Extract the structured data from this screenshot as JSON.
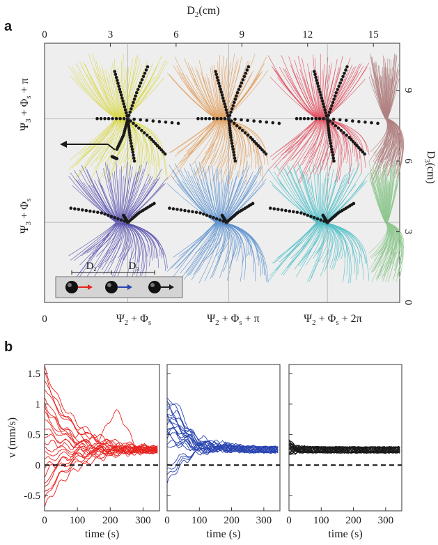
{
  "panel_labels": {
    "a": "a",
    "b": "b"
  },
  "chart_data": [
    {
      "type": "scatter",
      "panel": "a",
      "title": "",
      "xlabel_top": "D",
      "xlabel_top_sub": "2",
      "xlabel_top_unit": "(cm)",
      "ylabel_right": "D",
      "ylabel_right_sub": "3",
      "ylabel_right_unit": "(cm)",
      "xlim": [
        0,
        16.2
      ],
      "ylim": [
        0,
        11
      ],
      "x_ticks": [
        "0",
        "3",
        "6",
        "9",
        "12",
        "15"
      ],
      "x_tick_values": [
        0,
        3,
        6,
        9,
        12,
        15
      ],
      "y_ticks": [
        "0",
        "3",
        "6",
        "9"
      ],
      "y_tick_values": [
        0,
        3,
        6,
        9
      ],
      "bottom_labels": [
        {
          "text": "Ψ",
          "sub": "2",
          "rest": " + Φ",
          "sub2": "s",
          "tail": ""
        },
        {
          "text": "Ψ",
          "sub": "2",
          "rest": " + Φ",
          "sub2": "s",
          "tail": " + π"
        },
        {
          "text": "Ψ",
          "sub": "2",
          "rest": " + Φ",
          "sub2": "s",
          "tail": " + 2π"
        }
      ],
      "bottom_origin_label": "0",
      "left_labels": [
        {
          "text": "Ψ",
          "sub": "3",
          "rest": " + Φ",
          "sub2": "s",
          "tail": ""
        },
        {
          "text": "Ψ",
          "sub": "3",
          "rest": " + Φ",
          "sub2": "s",
          "tail": " + π"
        }
      ],
      "inset": {
        "d2": "D",
        "d2_sub": "2",
        "d3": "D",
        "d3_sub": "3"
      },
      "fixed_points": [
        {
          "x": 3.8,
          "y": 7.8,
          "row": "top"
        },
        {
          "x": 8.4,
          "y": 7.8,
          "row": "top"
        },
        {
          "x": 12.9,
          "y": 7.8,
          "row": "top"
        },
        {
          "x": 3.8,
          "y": 3.4,
          "row": "bottom"
        },
        {
          "x": 8.3,
          "y": 3.4,
          "row": "bottom"
        },
        {
          "x": 12.9,
          "y": 3.4,
          "row": "bottom"
        }
      ],
      "colors": {
        "top_row": [
          "#d8d84a",
          "#e0a060",
          "#e05060",
          "#b08080"
        ],
        "bottom_row": [
          "#5a55b0",
          "#5a90d0",
          "#50c0c8",
          "#90c890"
        ],
        "trajectory": "#1a1a1a"
      }
    },
    {
      "type": "line",
      "panel": "b",
      "subplots": [
        {
          "name": "",
          "color": "#e8221e",
          "xlabel": "time (s)",
          "x_ticks": [
            "0",
            "100",
            "200",
            "300"
          ]
        },
        {
          "name": "",
          "color": "#2a45b0",
          "xlabel": "time (s)",
          "x_ticks": [
            "0",
            "100",
            "200",
            "300"
          ]
        },
        {
          "name": "",
          "color": "#1a1a1a",
          "xlabel": "time (s)",
          "x_ticks": [
            "0",
            "100",
            "200",
            "300"
          ]
        }
      ],
      "ylabel": "v (mm/s)",
      "y_ticks": [
        "-0.5",
        "0",
        "0.5",
        "1",
        "1.5"
      ],
      "y_tick_values": [
        -0.5,
        0,
        0.5,
        1,
        1.5
      ],
      "xlim": [
        0,
        350
      ],
      "ylim": [
        -0.75,
        1.65
      ],
      "steady_state": 0.25,
      "zero_line": 0
    }
  ]
}
